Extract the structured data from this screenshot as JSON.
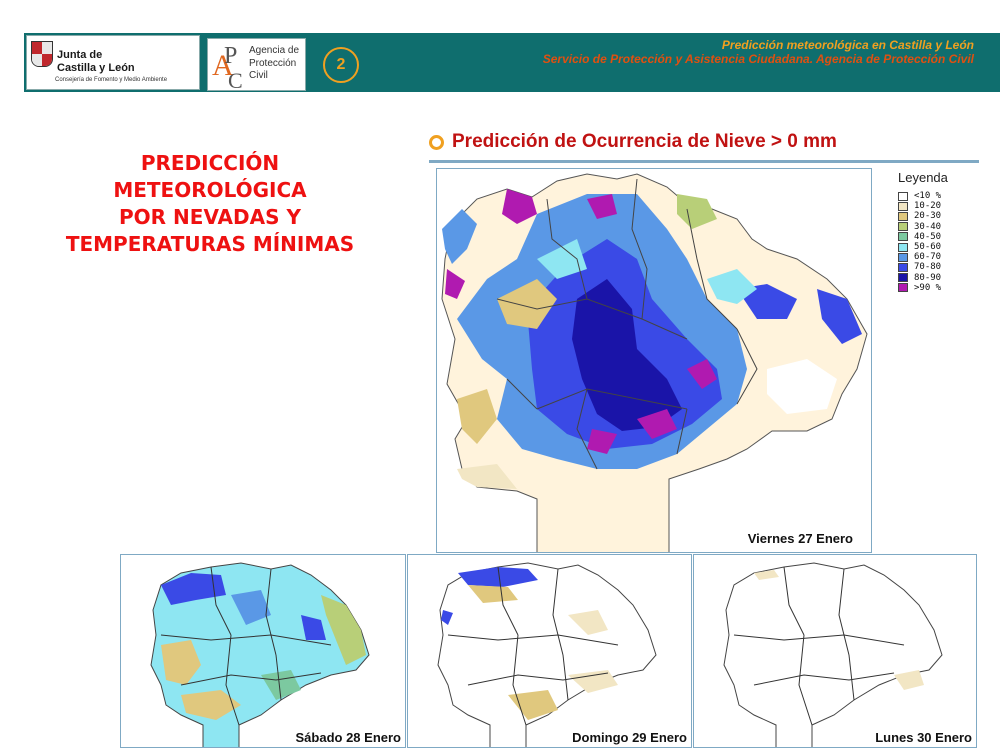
{
  "header": {
    "org_line1": "Junta de",
    "org_line2": "Castilla y León",
    "org_line3": "Consejería de Fomento y Medio Ambiente",
    "agency_line1": "Agencia de",
    "agency_line2": "Protección",
    "agency_line3": "Civil",
    "page_number": "2",
    "title_line1": "Predicción meteorológica en Castilla y León",
    "title_line2": "Servicio de Protección y Asistencia Ciudadana. Agencia de Protección Civil"
  },
  "main_title": {
    "line1": "PREDICCIÓN",
    "line2": "METEOROLÓGICA",
    "line3": "POR NEVADAS Y",
    "line4": "TEMPERATURAS MÍNIMAS"
  },
  "section": {
    "title": "Predicción de Ocurrencia de Nieve > 0 mm"
  },
  "legend": {
    "title": "Leyenda",
    "items": [
      {
        "label": "<10 %",
        "color": "#ffffff"
      },
      {
        "label": "10-20",
        "color": "#f2e6c4"
      },
      {
        "label": "20-30",
        "color": "#e0c87e"
      },
      {
        "label": "30-40",
        "color": "#b8cf78"
      },
      {
        "label": "40-50",
        "color": "#7cc9a0"
      },
      {
        "label": "50-60",
        "color": "#8ee6f2"
      },
      {
        "label": "60-70",
        "color": "#5a98e6"
      },
      {
        "label": "70-80",
        "color": "#3a4ae6"
      },
      {
        "label": "80-90",
        "color": "#1a14a8"
      },
      {
        "label": ">90 %",
        "color": "#b01ab0"
      }
    ]
  },
  "maps": {
    "main_caption": "Viernes 27 Enero",
    "day2_caption": "Sábado 28 Enero",
    "day3_caption": "Domingo 29 Enero",
    "day4_caption": "Lunes 30 Enero"
  },
  "colors": {
    "header_bg": "#0f6e6e",
    "accent_orange": "#f0a020",
    "title_red": "#ee1111",
    "frame_blue": "#7fa9c4"
  }
}
